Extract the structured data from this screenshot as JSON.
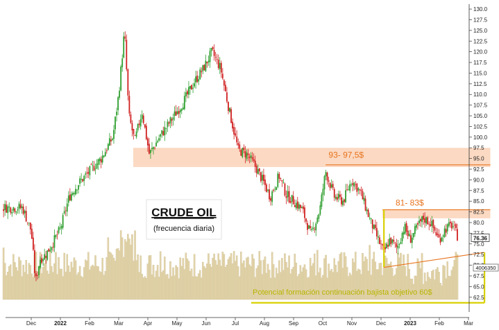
{
  "chart_data": {
    "type": "candlestick",
    "title": "CRUDE OIL",
    "subtitle": "(frecuencia diaria)",
    "ylim": [
      61,
      130.5
    ],
    "yticks": [
      "130.0",
      "127.5",
      "125.0",
      "122.5",
      "120.0",
      "117.5",
      "115.0",
      "112.5",
      "110.0",
      "107.5",
      "105.0",
      "102.5",
      "100.0",
      "97.5",
      "95.0",
      "92.5",
      "90.0",
      "87.5",
      "85.0",
      "82.5",
      "80.0",
      "77.5",
      "75.0",
      "72.5",
      "70.0",
      "67.5",
      "65.0",
      "62.5"
    ],
    "x_labels": [
      {
        "label": "Dec",
        "month_index": 0,
        "bold": false
      },
      {
        "label": "2022",
        "month_index": 1,
        "bold": true
      },
      {
        "label": "Feb",
        "month_index": 2,
        "bold": false
      },
      {
        "label": "Mar",
        "month_index": 3,
        "bold": false
      },
      {
        "label": "Apr",
        "month_index": 4,
        "bold": false
      },
      {
        "label": "May",
        "month_index": 5,
        "bold": false
      },
      {
        "label": "Jun",
        "month_index": 6,
        "bold": false
      },
      {
        "label": "Jul",
        "month_index": 7,
        "bold": false
      },
      {
        "label": "Aug",
        "month_index": 8,
        "bold": false
      },
      {
        "label": "Sep",
        "month_index": 9,
        "bold": false
      },
      {
        "label": "Oct",
        "month_index": 10,
        "bold": false
      },
      {
        "label": "Nov",
        "month_index": 11,
        "bold": false
      },
      {
        "label": "Dec",
        "month_index": 12,
        "bold": false
      },
      {
        "label": "2023",
        "month_index": 13,
        "bold": true
      },
      {
        "label": "Feb",
        "month_index": 14,
        "bold": false
      },
      {
        "label": "Mar",
        "month_index": 15,
        "bold": false
      }
    ],
    "price_path": [
      [
        -0.3,
        83.5
      ],
      [
        0.0,
        78.0
      ],
      [
        0.15,
        66.0
      ],
      [
        0.3,
        71.5
      ],
      [
        0.5,
        72.5
      ],
      [
        0.8,
        76.0
      ],
      [
        1.0,
        78.5
      ],
      [
        1.3,
        86.0
      ],
      [
        1.6,
        89.0
      ],
      [
        2.0,
        92.0
      ],
      [
        2.4,
        95.0
      ],
      [
        2.8,
        100.0
      ],
      [
        3.0,
        110.0
      ],
      [
        3.2,
        125.0
      ],
      [
        3.35,
        105.0
      ],
      [
        3.55,
        99.0
      ],
      [
        3.8,
        106.0
      ],
      [
        4.05,
        96.0
      ],
      [
        4.4,
        100.0
      ],
      [
        4.8,
        104.0
      ],
      [
        5.2,
        108.0
      ],
      [
        5.6,
        113.0
      ],
      [
        5.9,
        116.0
      ],
      [
        6.2,
        120.0
      ],
      [
        6.5,
        116.0
      ],
      [
        6.8,
        106.0
      ],
      [
        7.1,
        97.0
      ],
      [
        7.4,
        96.0
      ],
      [
        7.7,
        93.0
      ],
      [
        8.0,
        89.0
      ],
      [
        8.2,
        86.0
      ],
      [
        8.5,
        91.0
      ],
      [
        8.75,
        86.5
      ],
      [
        9.0,
        85.0
      ],
      [
        9.3,
        83.0
      ],
      [
        9.6,
        77.0
      ],
      [
        9.9,
        83.0
      ],
      [
        10.1,
        92.0
      ],
      [
        10.4,
        86.0
      ],
      [
        10.7,
        85.0
      ],
      [
        11.0,
        90.0
      ],
      [
        11.3,
        87.0
      ],
      [
        11.6,
        81.0
      ],
      [
        11.9,
        76.0
      ],
      [
        12.1,
        73.0
      ],
      [
        12.3,
        76.0
      ],
      [
        12.55,
        74.0
      ],
      [
        12.8,
        79.0
      ],
      [
        13.0,
        76.0
      ],
      [
        13.25,
        79.0
      ],
      [
        13.45,
        81.0
      ],
      [
        13.7,
        80.0
      ],
      [
        14.0,
        76.0
      ],
      [
        14.2,
        78.5
      ],
      [
        14.45,
        79.5
      ],
      [
        14.65,
        76.36
      ]
    ],
    "volume": {
      "label": "4006350",
      "level": 0.5
    },
    "last_price": "76.36",
    "zones": [
      {
        "id": "zone-93-97",
        "y1": 93,
        "y2": 97.5,
        "x1": 3.5,
        "x2": 15.75,
        "line_y": 93.5,
        "line_x1": 10.1,
        "color": "#fbd9c2"
      },
      {
        "id": "zone-81-83",
        "y1": 81,
        "y2": 83,
        "x1": 12.05,
        "x2": 15.75,
        "line_y": 83,
        "line_x1": 12.05,
        "color": "#fbd9c2"
      }
    ],
    "annotations": [
      {
        "id": "anno-93",
        "text": "93- 97,5$",
        "x": 10.2,
        "y": 95.2
      },
      {
        "id": "anno-81",
        "text": "81- 83$",
        "x": 12.5,
        "y": 84.0
      }
    ],
    "bottom_annotation": "Potencial formación continuación bajista objetivo 60$",
    "triangle": {
      "apex_x": 12.1,
      "apex_y": 83.0,
      "base_left_x": 12.1,
      "base_left_y": 69.5,
      "base_right_x": 15.55,
      "base_right_y": 73.0,
      "target_y": 61.2
    },
    "grid": false,
    "legend": "center-left"
  },
  "colors": {
    "up": "#2e9e2e",
    "down": "#d02020",
    "volume": "#e2d4aa",
    "volume_edge": "#c9b78a",
    "zone": "#fbd9c2",
    "orange": "#e8731c",
    "yellow": "#c8c400",
    "yellow_line": "#d8d000"
  }
}
